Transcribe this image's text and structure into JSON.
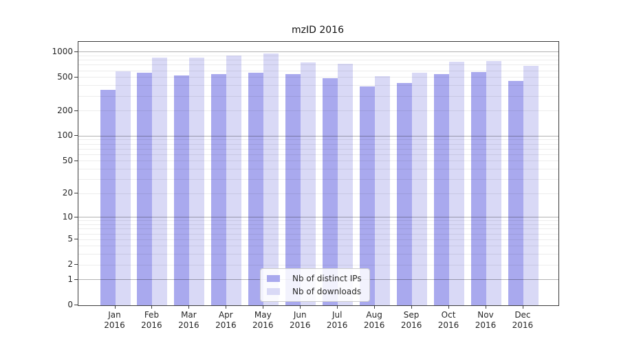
{
  "chart_data": {
    "type": "bar",
    "title": "mzID 2016",
    "categories": [
      "Jan 2016",
      "Feb 2016",
      "Mar 2016",
      "Apr 2016",
      "May 2016",
      "Jun 2016",
      "Jul 2016",
      "Aug 2016",
      "Sep 2016",
      "Oct 2016",
      "Nov 2016",
      "Dec 2016"
    ],
    "series": [
      {
        "name": "Nb of distinct IPs",
        "color": "#a9a9ee",
        "values": [
          355,
          565,
          525,
          545,
          565,
          550,
          490,
          390,
          430,
          550,
          580,
          450
        ]
      },
      {
        "name": "Nb of downloads",
        "color": "#d9d9f6",
        "values": [
          595,
          860,
          860,
          905,
          965,
          750,
          730,
          520,
          570,
          760,
          780,
          690
        ]
      }
    ],
    "yscale": "log1p",
    "yticks": [
      0,
      1,
      2,
      5,
      10,
      20,
      50,
      100,
      200,
      500,
      1000
    ],
    "ylim": [
      0,
      1320
    ],
    "xlabel": "",
    "ylabel": "",
    "grid": "on",
    "legend_position": "lower center"
  }
}
